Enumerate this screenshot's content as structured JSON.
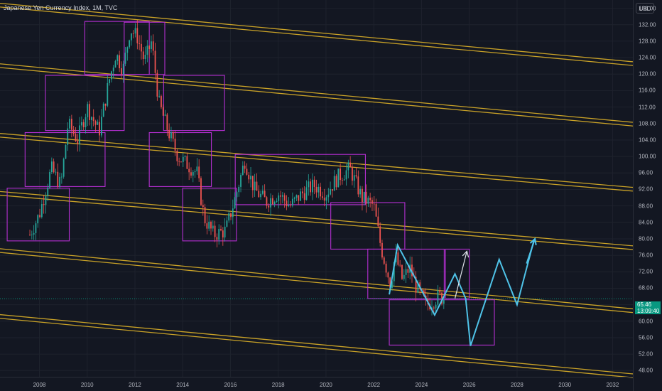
{
  "header": {
    "symbol_title": "Japanese Yen Currency Index, 1M, TVC",
    "currency_label": "USD"
  },
  "price_badge": {
    "price": "65.46",
    "countdown": "13:09:40"
  },
  "colors": {
    "background": "#131722",
    "channel": "#c9a227",
    "box": "#b42fd1",
    "candle_up": "#26a69a",
    "candle_down": "#ef5350",
    "projection": "#4fc3e8",
    "arrow_white": "#e0e3eb",
    "badge": "#089981"
  },
  "chart_data": {
    "type": "candlestick",
    "title": "Japanese Yen Currency Index, 1M, TVC",
    "x_ticks": [
      "2008",
      "2010",
      "2012",
      "2014",
      "2016",
      "2018",
      "2020",
      "2022",
      "2024",
      "2026",
      "2028",
      "2030",
      "2032"
    ],
    "y_ticks": [
      "136.00",
      "132.00",
      "128.00",
      "124.00",
      "120.00",
      "116.00",
      "112.00",
      "108.00",
      "104.00",
      "100.00",
      "96.00",
      "92.00",
      "88.00",
      "84.00",
      "80.00",
      "76.00",
      "72.00",
      "68.00",
      "64.00",
      "60.00",
      "56.00",
      "52.00",
      "48.00"
    ],
    "ylim": [
      46.5,
      138
    ],
    "xlim": [
      2006.35,
      2032.85
    ],
    "current_price": 65.46,
    "price_path": [
      [
        2007.6,
        81
      ],
      [
        2008.0,
        86
      ],
      [
        2008.5,
        97
      ],
      [
        2008.9,
        93
      ],
      [
        2009.2,
        108
      ],
      [
        2009.6,
        104
      ],
      [
        2010.0,
        112
      ],
      [
        2010.5,
        106
      ],
      [
        2010.9,
        118
      ],
      [
        2011.2,
        125
      ],
      [
        2011.5,
        121
      ],
      [
        2011.8,
        131
      ],
      [
        2012.1,
        129
      ],
      [
        2012.4,
        123
      ],
      [
        2012.7,
        128
      ],
      [
        2013.0,
        113
      ],
      [
        2013.4,
        106
      ],
      [
        2013.8,
        100
      ],
      [
        2014.2,
        98
      ],
      [
        2014.6,
        96
      ],
      [
        2014.9,
        85
      ],
      [
        2015.3,
        81
      ],
      [
        2015.8,
        82
      ],
      [
        2016.2,
        90
      ],
      [
        2016.6,
        99
      ],
      [
        2017.0,
        92
      ],
      [
        2017.5,
        89
      ],
      [
        2018.0,
        91
      ],
      [
        2018.5,
        88
      ],
      [
        2019.0,
        91
      ],
      [
        2019.5,
        93
      ],
      [
        2020.0,
        91
      ],
      [
        2020.5,
        95
      ],
      [
        2021.0,
        97
      ],
      [
        2021.5,
        90
      ],
      [
        2022.0,
        88
      ],
      [
        2022.3,
        78
      ],
      [
        2022.7,
        69
      ],
      [
        2022.9,
        76
      ],
      [
        2023.2,
        70
      ],
      [
        2023.5,
        73
      ],
      [
        2023.8,
        68
      ],
      [
        2024.2,
        64
      ],
      [
        2024.5,
        65
      ],
      [
        2024.7,
        66
      ],
      [
        2025.0,
        65.46
      ]
    ],
    "channels": [
      [
        [
          2006.35,
          137.2
        ],
        [
          2032.85,
          123.0
        ]
      ],
      [
        [
          2006.35,
          136.3
        ],
        [
          2032.85,
          122.1
        ]
      ],
      [
        [
          2006.35,
          122.5
        ],
        [
          2032.85,
          108.3
        ]
      ],
      [
        [
          2006.35,
          121.6
        ],
        [
          2032.85,
          107.4
        ]
      ],
      [
        [
          2006.35,
          105.6
        ],
        [
          2032.85,
          92.5
        ]
      ],
      [
        [
          2006.35,
          104.7
        ],
        [
          2032.85,
          91.6
        ]
      ],
      [
        [
          2006.35,
          91.5
        ],
        [
          2032.85,
          78.3
        ]
      ],
      [
        [
          2006.35,
          90.6
        ],
        [
          2032.85,
          77.4
        ]
      ],
      [
        [
          2006.35,
          77.6
        ],
        [
          2032.85,
          63.0
        ]
      ],
      [
        [
          2006.35,
          76.7
        ],
        [
          2032.85,
          62.1
        ]
      ],
      [
        [
          2006.35,
          61.6
        ],
        [
          2032.85,
          47.2
        ]
      ],
      [
        [
          2006.35,
          60.7
        ],
        [
          2032.85,
          46.3
        ]
      ]
    ],
    "boxes": [
      [
        2006.65,
        2009.25,
        92.3,
        79.5
      ],
      [
        2007.4,
        2010.75,
        105.8,
        92.7
      ],
      [
        2008.25,
        2011.55,
        119.7,
        106.3
      ],
      [
        2009.9,
        2012.6,
        132.8,
        119.9
      ],
      [
        2011.55,
        2013.25,
        132.6,
        119.9
      ],
      [
        2013.2,
        2015.75,
        119.7,
        106.3
      ],
      [
        2012.6,
        2015.2,
        105.8,
        92.7
      ],
      [
        2014.0,
        2016.25,
        92.3,
        79.5
      ],
      [
        2016.2,
        2021.65,
        100.5,
        88.3
      ],
      [
        2020.2,
        2023.3,
        88.8,
        77.5
      ],
      [
        2021.75,
        2024.95,
        77.5,
        65.5
      ],
      [
        2025.0,
        2026.0,
        77.5,
        65.5
      ],
      [
        2022.65,
        2027.05,
        65.2,
        54.2
      ]
    ],
    "projection_path": [
      [
        2022.65,
        66.5
      ],
      [
        2023.0,
        78.5
      ],
      [
        2024.55,
        61.5
      ],
      [
        2025.4,
        71.5
      ],
      [
        2025.85,
        65.5
      ],
      [
        2026.05,
        54.0
      ],
      [
        2027.25,
        75.0
      ],
      [
        2028.0,
        64.0
      ],
      [
        2028.7,
        79.5
      ]
    ],
    "arrows": [
      {
        "color": "white",
        "from": [
          2025.4,
          65.5
        ],
        "to": [
          2025.9,
          77.0
        ]
      },
      {
        "color": "blue",
        "from": [
          2028.4,
          74.0
        ],
        "to": [
          2028.75,
          80.0
        ]
      }
    ]
  }
}
